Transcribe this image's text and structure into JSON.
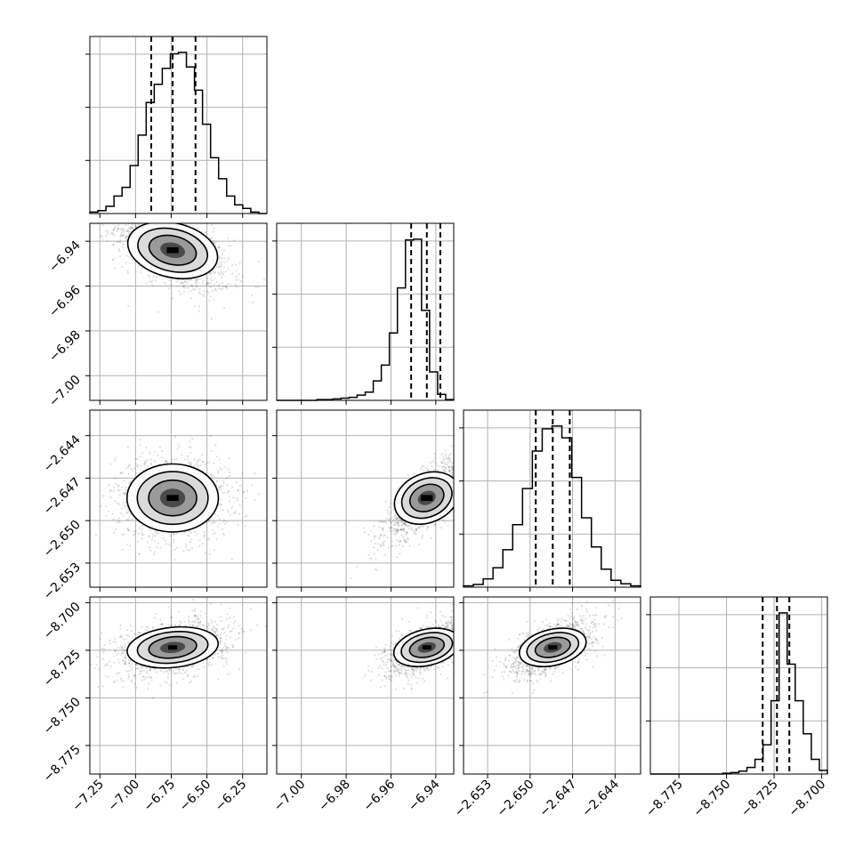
{
  "chart_data": {
    "type": "corner",
    "title": "",
    "grid": true,
    "parameters": [
      {
        "index": 0,
        "range": [
          -7.32,
          -6.08
        ],
        "ticks": [
          -7.25,
          -7.0,
          -6.75,
          -6.5,
          -6.25
        ],
        "tick_labels": [
          "−7.25",
          "−7.00",
          "−6.75",
          "−6.50",
          "−6.25"
        ],
        "center": -6.74,
        "spread": 0.16,
        "quantiles": [
          -6.89,
          -6.74,
          -6.58
        ]
      },
      {
        "index": 1,
        "range": [
          -7.011,
          -6.932
        ],
        "ticks": [
          -7.0,
          -6.98,
          -6.96,
          -6.94
        ],
        "tick_labels": [
          "−7.00",
          "−6.98",
          "−6.96",
          "−6.94"
        ],
        "center": -6.944,
        "spread": 0.0075,
        "quantiles": [
          -6.951,
          -6.944,
          -6.938
        ]
      },
      {
        "index": 2,
        "range": [
          -2.6547,
          -2.6422
        ],
        "ticks": [
          -2.653,
          -2.65,
          -2.647,
          -2.644
        ],
        "tick_labels": [
          "−2.653",
          "−2.650",
          "−2.647",
          "−2.644"
        ],
        "center": -2.6484,
        "spread": 0.0012,
        "quantiles": [
          -2.6496,
          -2.6484,
          -2.6472
        ]
      },
      {
        "index": 3,
        "range": [
          -8.79,
          -8.697
        ],
        "ticks": [
          -8.775,
          -8.75,
          -8.725,
          -8.7
        ],
        "tick_labels": [
          "−8.775",
          "−8.750",
          "−8.725",
          "−8.700"
        ],
        "center": -8.7235,
        "spread": 0.006,
        "quantiles": [
          -8.731,
          -8.7235,
          -8.717
        ]
      }
    ],
    "histograms": [
      {
        "param": 0,
        "counts": [
          2,
          4,
          10,
          24,
          36,
          66,
          108,
          153,
          178,
          200,
          220,
          222,
          202,
          170,
          123,
          77,
          48,
          24,
          12,
          7,
          2,
          0
        ]
      },
      {
        "param": 1,
        "counts": [
          0,
          0,
          0,
          0,
          0,
          1,
          1,
          2,
          3,
          4,
          7,
          11,
          26,
          47,
          90,
          150,
          214,
          215,
          120,
          38,
          8,
          1
        ]
      },
      {
        "param": 2,
        "counts": [
          2,
          4,
          12,
          28,
          54,
          90,
          142,
          196,
          228,
          232,
          215,
          158,
          100,
          58,
          26,
          10,
          5,
          2
        ]
      },
      {
        "param": 3,
        "counts": [
          0,
          0,
          0,
          0,
          0,
          0,
          0,
          0,
          0,
          1,
          2,
          4,
          9,
          20,
          40,
          100,
          220,
          150,
          100,
          55,
          20,
          5
        ]
      }
    ],
    "pairs": [
      {
        "x": 0,
        "y": 1,
        "correlation": -0.55
      },
      {
        "x": 0,
        "y": 2,
        "correlation": 0.0
      },
      {
        "x": 1,
        "y": 2,
        "correlation": 0.8
      },
      {
        "x": 0,
        "y": 3,
        "correlation": 0.35
      },
      {
        "x": 1,
        "y": 3,
        "correlation": 0.6
      },
      {
        "x": 2,
        "y": 3,
        "correlation": 0.6
      }
    ]
  }
}
